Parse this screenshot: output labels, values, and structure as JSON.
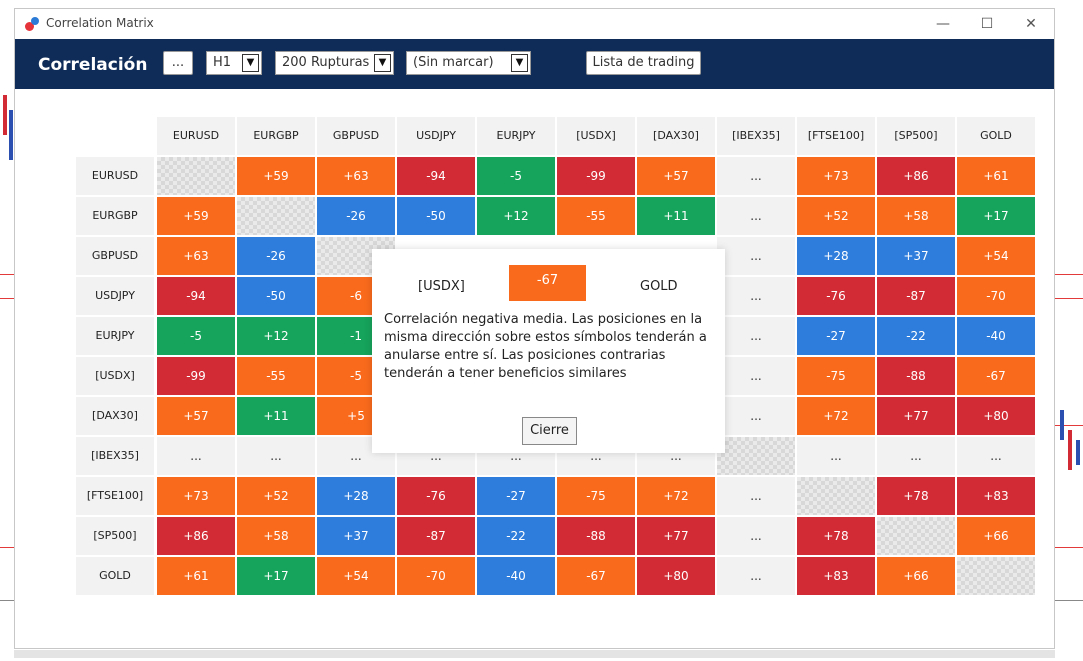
{
  "window": {
    "title": "Correlation Matrix"
  },
  "toolbar": {
    "title": "Correlación",
    "more_label": "...",
    "timeframe": "H1",
    "bars": "200 Rupturas",
    "mark": "(Sin marcar)",
    "list_label": "Lista de trading"
  },
  "columns": [
    "EURUSD",
    "EURGBP",
    "GBPUSD",
    "USDJPY",
    "EURJPY",
    "[USDX]",
    "[DAX30]",
    "[IBEX35]",
    "[FTSE100]",
    "[SP500]",
    "GOLD"
  ],
  "rows": [
    {
      "label": "EURUSD",
      "values": [
        "",
        "+59",
        "+63",
        "-94",
        "-5",
        "-99",
        "+57",
        "...",
        "+73",
        "+86",
        "+61"
      ],
      "colors": [
        "self",
        "orange",
        "orange",
        "red",
        "green",
        "red",
        "orange",
        "na",
        "orange",
        "red",
        "orange"
      ]
    },
    {
      "label": "EURGBP",
      "values": [
        "+59",
        "",
        "-26",
        "-50",
        "+12",
        "-55",
        "+11",
        "...",
        "+52",
        "+58",
        "+17"
      ],
      "colors": [
        "orange",
        "self",
        "blue",
        "blue",
        "green",
        "orange",
        "green",
        "na",
        "orange",
        "orange",
        "green"
      ]
    },
    {
      "label": "GBPUSD",
      "values": [
        "+63",
        "-26",
        "",
        "",
        "",
        "",
        "",
        "...",
        "+28",
        "+37",
        "+54"
      ],
      "colors": [
        "orange",
        "blue",
        "self",
        "none",
        "none",
        "none",
        "none",
        "na",
        "blue",
        "blue",
        "orange"
      ]
    },
    {
      "label": "USDJPY",
      "values": [
        "-94",
        "-50",
        "-6",
        "",
        "",
        "",
        "",
        "...",
        "-76",
        "-87",
        "-70"
      ],
      "colors": [
        "red",
        "blue",
        "orange",
        "none",
        "none",
        "none",
        "none",
        "na",
        "red",
        "red",
        "orange"
      ]
    },
    {
      "label": "EURJPY",
      "values": [
        "-5",
        "+12",
        "-1",
        "",
        "",
        "",
        "",
        "...",
        "-27",
        "-22",
        "-40"
      ],
      "colors": [
        "green",
        "green",
        "green",
        "none",
        "none",
        "none",
        "none",
        "na",
        "blue",
        "blue",
        "blue"
      ]
    },
    {
      "label": "[USDX]",
      "values": [
        "-99",
        "-55",
        "-5",
        "",
        "",
        "",
        "",
        "...",
        "-75",
        "-88",
        "-67"
      ],
      "colors": [
        "red",
        "orange",
        "orange",
        "none",
        "none",
        "none",
        "none",
        "na",
        "orange",
        "red",
        "orange"
      ]
    },
    {
      "label": "[DAX30]",
      "values": [
        "+57",
        "+11",
        "+5",
        "",
        "",
        "",
        "",
        "...",
        "+72",
        "+77",
        "+80"
      ],
      "colors": [
        "orange",
        "green",
        "orange",
        "none",
        "none",
        "none",
        "none",
        "na",
        "orange",
        "red",
        "red"
      ]
    },
    {
      "label": "[IBEX35]",
      "values": [
        "...",
        "...",
        "...",
        "...",
        "...",
        "...",
        "...",
        "",
        "...",
        "...",
        "..."
      ],
      "colors": [
        "na",
        "na",
        "na",
        "na",
        "na",
        "na",
        "na",
        "self",
        "na",
        "na",
        "na"
      ]
    },
    {
      "label": "[FTSE100]",
      "values": [
        "+73",
        "+52",
        "+28",
        "-76",
        "-27",
        "-75",
        "+72",
        "...",
        "",
        "+78",
        "+83"
      ],
      "colors": [
        "orange",
        "orange",
        "blue",
        "red",
        "blue",
        "orange",
        "orange",
        "na",
        "self",
        "red",
        "red"
      ]
    },
    {
      "label": "[SP500]",
      "values": [
        "+86",
        "+58",
        "+37",
        "-87",
        "-22",
        "-88",
        "+77",
        "...",
        "+78",
        "",
        "+66"
      ],
      "colors": [
        "red",
        "orange",
        "blue",
        "red",
        "blue",
        "red",
        "red",
        "na",
        "red",
        "self",
        "orange"
      ]
    },
    {
      "label": "GOLD",
      "values": [
        "+61",
        "+17",
        "+54",
        "-70",
        "-40",
        "-67",
        "+80",
        "...",
        "+83",
        "+66",
        ""
      ],
      "colors": [
        "orange",
        "green",
        "orange",
        "orange",
        "blue",
        "orange",
        "red",
        "na",
        "red",
        "orange",
        "self"
      ]
    }
  ],
  "popup": {
    "symbol1": "[USDX]",
    "value": "-67",
    "symbol2": "GOLD",
    "description": "Correlación negativa media. Las posiciones en la misma dirección sobre estos símbolos tenderán a anularse entre sí. Las posiciones contrarias tenderán a tener beneficios similares",
    "close_label": "Cierre"
  },
  "colors": {
    "toolbar": "#0f2c58",
    "red": "#d22b35",
    "orange": "#f96a1c",
    "green": "#16a35b",
    "blue": "#2e7ddc"
  }
}
